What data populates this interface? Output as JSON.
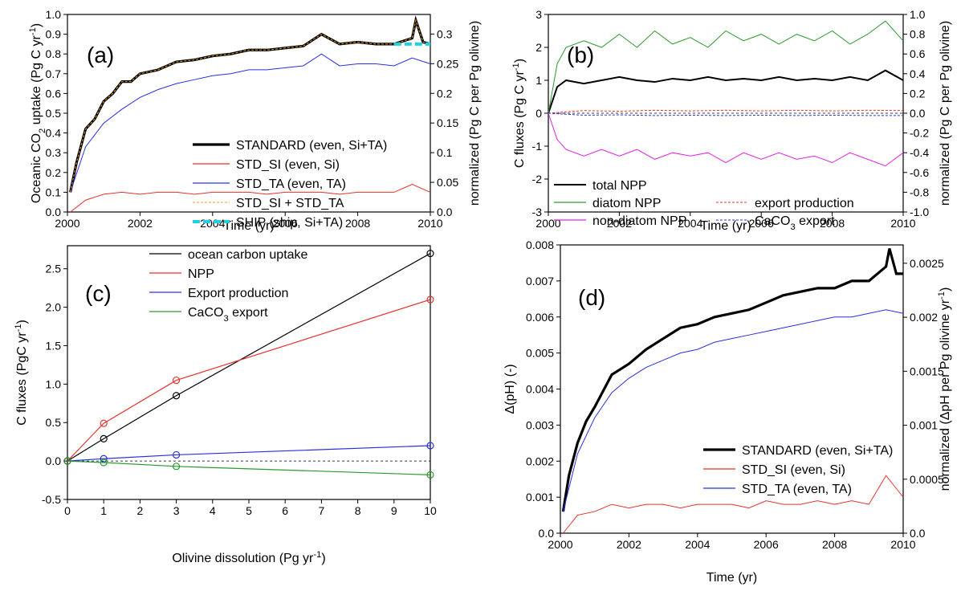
{
  "chart_data": [
    {
      "panel": "(a)",
      "type": "line",
      "xlabel": "Time (yr)",
      "ylabel": "Oceanic CO2 uptake (Pg C yr-1)",
      "ylabel_parts": [
        "Oceanic CO",
        "2",
        " uptake (Pg C yr",
        "-1",
        ")"
      ],
      "ylabel_right": "normalized (Pg C per Pg olivine)",
      "xlim": [
        2000,
        2010
      ],
      "ylim": [
        0,
        1.0
      ],
      "ylim_right": [
        0,
        0.333
      ],
      "xticks": [
        "2000",
        "2002",
        "2004",
        "2006",
        "2008",
        "2010"
      ],
      "yticks": [
        "0.0",
        "0.1",
        "0.2",
        "0.3",
        "0.4",
        "0.5",
        "0.6",
        "0.7",
        "0.8",
        "0.9",
        "1.0"
      ],
      "yticks_right": [
        "0.0",
        "0.05",
        "0.1",
        "0.15",
        "0.2",
        "0.25",
        "0.3"
      ],
      "legend_position": "lower-right",
      "series": [
        {
          "name": "STANDARD (even, Si+TA)",
          "color": "#000000",
          "style": "thick",
          "x": [
            2000.08,
            2000.25,
            2000.5,
            2000.75,
            2001.0,
            2001.25,
            2001.5,
            2001.75,
            2002.0,
            2002.5,
            2003.0,
            2003.5,
            2004.0,
            2004.5,
            2005.0,
            2005.5,
            2006.0,
            2006.5,
            2007.0,
            2007.5,
            2008.0,
            2008.5,
            2009.0,
            2009.5,
            2009.6,
            2009.8,
            2010.0
          ],
          "y": [
            0.1,
            0.25,
            0.42,
            0.47,
            0.56,
            0.6,
            0.66,
            0.66,
            0.7,
            0.72,
            0.76,
            0.77,
            0.79,
            0.8,
            0.82,
            0.82,
            0.83,
            0.84,
            0.9,
            0.85,
            0.86,
            0.85,
            0.85,
            0.88,
            0.97,
            0.86,
            0.85
          ]
        },
        {
          "name": "STD_SI (even, Si)",
          "color": "#e8302a",
          "style": "thin",
          "x": [
            2000.08,
            2000.5,
            2001.0,
            2001.5,
            2002.0,
            2002.5,
            2003.0,
            2003.5,
            2004.0,
            2004.5,
            2005.0,
            2005.5,
            2006.0,
            2006.5,
            2007.0,
            2007.5,
            2008.0,
            2008.5,
            2009.0,
            2009.5,
            2010.0
          ],
          "y": [
            0.0,
            0.06,
            0.09,
            0.1,
            0.09,
            0.1,
            0.1,
            0.09,
            0.1,
            0.1,
            0.1,
            0.09,
            0.1,
            0.1,
            0.1,
            0.09,
            0.1,
            0.1,
            0.1,
            0.14,
            0.1
          ]
        },
        {
          "name": "STD_TA (even, TA)",
          "color": "#2830e0",
          "style": "thin",
          "x": [
            2000.08,
            2000.5,
            2001.0,
            2001.5,
            2002.0,
            2002.5,
            2003.0,
            2003.5,
            2004.0,
            2004.5,
            2005.0,
            2005.5,
            2006.0,
            2006.5,
            2007.0,
            2007.5,
            2008.0,
            2008.5,
            2009.0,
            2009.5,
            2010.0
          ],
          "y": [
            0.1,
            0.33,
            0.45,
            0.52,
            0.58,
            0.62,
            0.65,
            0.67,
            0.69,
            0.7,
            0.72,
            0.72,
            0.73,
            0.74,
            0.8,
            0.74,
            0.75,
            0.75,
            0.74,
            0.78,
            0.75
          ]
        },
        {
          "name": "STD_SI + STD_TA",
          "color": "#e8a020",
          "style": "dashed",
          "x": [
            2000.08,
            2000.25,
            2000.5,
            2000.75,
            2001.0,
            2001.25,
            2001.5,
            2001.75,
            2002.0,
            2002.5,
            2003.0,
            2003.5,
            2004.0,
            2004.5,
            2005.0,
            2005.5,
            2006.0,
            2006.5,
            2007.0,
            2007.5,
            2008.0,
            2008.5,
            2009.0,
            2009.5,
            2009.6,
            2009.8,
            2010.0
          ],
          "y": [
            0.1,
            0.25,
            0.42,
            0.47,
            0.56,
            0.6,
            0.66,
            0.66,
            0.7,
            0.72,
            0.76,
            0.77,
            0.79,
            0.8,
            0.82,
            0.82,
            0.83,
            0.84,
            0.9,
            0.85,
            0.86,
            0.85,
            0.85,
            0.88,
            0.97,
            0.86,
            0.85
          ]
        },
        {
          "name": "SHIP (ship, Si+TA)",
          "color": "#20d0e0",
          "style": "thickdashed",
          "x": [
            2009.0,
            2010.0
          ],
          "y": [
            0.85,
            0.85
          ]
        }
      ]
    },
    {
      "panel": "(b)",
      "type": "line",
      "xlabel": "Time (yr)",
      "ylabel": "C fluxes (Pg C yr-1)",
      "ylabel_parts": [
        "C fluxes (Pg C yr",
        "-1",
        ")"
      ],
      "ylabel_right": "normalized (Pg C per Pg olivine)",
      "xlim": [
        2000,
        2010
      ],
      "ylim": [
        -3,
        3
      ],
      "ylim_right": [
        -1.0,
        1.0
      ],
      "xticks": [
        "2000",
        "2002",
        "2004",
        "2006",
        "2008",
        "2010"
      ],
      "yticks": [
        "-3",
        "-2",
        "-1",
        "0",
        "1",
        "2",
        "3"
      ],
      "yticks_right": [
        "-1.0",
        "-0.8",
        "-0.6",
        "-0.4",
        "-0.2",
        "0.0",
        "0.2",
        "0.4",
        "0.6",
        "0.8",
        "1.0"
      ],
      "legend_position": "lower",
      "series": [
        {
          "name": "total NPP",
          "color": "#000000",
          "style": "medium",
          "x": [
            2000.0,
            2000.25,
            2000.5,
            2001.0,
            2001.5,
            2002.0,
            2002.5,
            2003.0,
            2003.5,
            2004.0,
            2004.5,
            2005.0,
            2005.5,
            2006.0,
            2006.5,
            2007.0,
            2007.5,
            2008.0,
            2008.5,
            2009.0,
            2009.5,
            2010.0
          ],
          "y": [
            0.0,
            0.8,
            1.0,
            0.9,
            1.0,
            1.1,
            1.0,
            0.95,
            1.05,
            1.0,
            1.1,
            1.0,
            1.05,
            1.0,
            1.1,
            1.0,
            1.05,
            1.0,
            1.1,
            1.0,
            1.3,
            1.0
          ]
        },
        {
          "name": "diatom NPP",
          "color": "#2a9a2a",
          "style": "thin",
          "x": [
            2000.0,
            2000.25,
            2000.5,
            2001.0,
            2001.5,
            2002.0,
            2002.5,
            2003.0,
            2003.5,
            2004.0,
            2004.5,
            2005.0,
            2005.5,
            2006.0,
            2006.5,
            2007.0,
            2007.5,
            2008.0,
            2008.5,
            2009.0,
            2009.5,
            2010.0
          ],
          "y": [
            0.0,
            1.5,
            2.0,
            2.2,
            2.0,
            2.4,
            2.0,
            2.5,
            2.1,
            2.3,
            2.0,
            2.5,
            2.2,
            2.4,
            2.1,
            2.4,
            2.2,
            2.5,
            2.1,
            2.4,
            2.8,
            2.2
          ]
        },
        {
          "name": "non-diatom NPP",
          "color": "#e020e0",
          "style": "thin",
          "x": [
            2000.0,
            2000.25,
            2000.5,
            2001.0,
            2001.5,
            2002.0,
            2002.5,
            2003.0,
            2003.5,
            2004.0,
            2004.5,
            2005.0,
            2005.5,
            2006.0,
            2006.5,
            2007.0,
            2007.5,
            2008.0,
            2008.5,
            2009.0,
            2009.5,
            2010.0
          ],
          "y": [
            0.0,
            -0.8,
            -1.1,
            -1.3,
            -1.1,
            -1.3,
            -1.1,
            -1.4,
            -1.2,
            -1.3,
            -1.2,
            -1.5,
            -1.2,
            -1.4,
            -1.2,
            -1.4,
            -1.3,
            -1.5,
            -1.2,
            -1.4,
            -1.6,
            -1.2
          ]
        },
        {
          "name": "export production",
          "color": "#e8302a",
          "style": "dashed",
          "x": [
            2000.0,
            2001.0,
            2002.0,
            2003.0,
            2004.0,
            2005.0,
            2006.0,
            2007.0,
            2008.0,
            2009.0,
            2010.0
          ],
          "y": [
            0.0,
            0.08,
            0.06,
            0.09,
            0.07,
            0.09,
            0.07,
            0.09,
            0.07,
            0.09,
            0.08
          ]
        },
        {
          "name": "CaCO3 export",
          "name_parts": [
            "CaCO",
            "3",
            " export"
          ],
          "color": "#2830e0",
          "style": "dashed",
          "x": [
            2000.0,
            2001.0,
            2002.0,
            2003.0,
            2004.0,
            2005.0,
            2006.0,
            2007.0,
            2008.0,
            2009.0,
            2010.0
          ],
          "y": [
            0.0,
            -0.06,
            -0.05,
            -0.07,
            -0.06,
            -0.07,
            -0.06,
            -0.07,
            -0.06,
            -0.07,
            -0.07
          ]
        }
      ]
    },
    {
      "panel": "(c)",
      "type": "line",
      "xlabel": "Olivine dissolution (Pg yr-1)",
      "xlabel_parts": [
        "Olivine dissolution (Pg yr",
        "-1",
        ")"
      ],
      "ylabel": "C fluxes (PgC yr-1)",
      "ylabel_parts": [
        "C fluxes (PgC yr",
        "-1",
        ")"
      ],
      "xlim": [
        0,
        10
      ],
      "ylim": [
        -0.5,
        2.8
      ],
      "xticks": [
        "0",
        "1",
        "2",
        "3",
        "4",
        "5",
        "6",
        "7",
        "8",
        "9",
        "10"
      ],
      "yticks": [
        "-0.5",
        "0.0",
        "0.5",
        "1.0",
        "1.5",
        "2.0",
        "2.5"
      ],
      "legend_position": "top",
      "series": [
        {
          "name": "ocean carbon uptake",
          "color": "#000000",
          "x": [
            0,
            1,
            3,
            10
          ],
          "y": [
            0,
            0.29,
            0.85,
            2.7
          ]
        },
        {
          "name": "NPP",
          "color": "#e8302a",
          "x": [
            0,
            1,
            3,
            10
          ],
          "y": [
            0,
            0.49,
            1.05,
            2.1
          ]
        },
        {
          "name": "Export production",
          "color": "#2830e0",
          "x": [
            0,
            1,
            3,
            10
          ],
          "y": [
            0,
            0.03,
            0.08,
            0.2
          ]
        },
        {
          "name": "CaCO3 export",
          "name_parts": [
            "CaCO",
            "3",
            " export"
          ],
          "color": "#2a9a2a",
          "x": [
            0,
            1,
            3,
            10
          ],
          "y": [
            0,
            -0.02,
            -0.07,
            -0.18
          ]
        }
      ]
    },
    {
      "panel": "(d)",
      "type": "line",
      "xlabel": "Time (yr)",
      "ylabel": "Δ(pH) (-)",
      "ylabel_right": "normalized (ΔpH per Pg olivine yr-1)",
      "ylabel_right_parts": [
        "normalized (ΔpH per Pg olivine yr",
        "-1",
        ")"
      ],
      "xlim": [
        2000,
        2010
      ],
      "ylim": [
        0,
        0.008
      ],
      "ylim_right": [
        0,
        0.00267
      ],
      "xticks": [
        "2000",
        "2002",
        "2004",
        "2006",
        "2008",
        "2010"
      ],
      "yticks": [
        "0.0",
        "0.001",
        "0.002",
        "0.003",
        "0.004",
        "0.005",
        "0.006",
        "0.007",
        "0.008"
      ],
      "yticks_right": [
        "0.0",
        "0.0005",
        "0.001",
        "0.0015",
        "0.002",
        "0.0025"
      ],
      "legend_position": "right",
      "series": [
        {
          "name": "STANDARD (even, Si+TA)",
          "color": "#000000",
          "style": "thick",
          "x": [
            2000.08,
            2000.25,
            2000.5,
            2000.75,
            2001.0,
            2001.5,
            2002.0,
            2002.5,
            2003.0,
            2003.5,
            2004.0,
            2004.5,
            2005.0,
            2005.5,
            2006.0,
            2006.5,
            2007.0,
            2007.5,
            2008.0,
            2008.5,
            2009.0,
            2009.5,
            2009.6,
            2009.8,
            2010.0
          ],
          "y": [
            0.0006,
            0.0016,
            0.0025,
            0.0031,
            0.0035,
            0.0044,
            0.0047,
            0.0051,
            0.0054,
            0.0057,
            0.0058,
            0.006,
            0.0061,
            0.0062,
            0.0064,
            0.0066,
            0.0067,
            0.0068,
            0.0068,
            0.007,
            0.007,
            0.0074,
            0.0079,
            0.0072,
            0.0072
          ]
        },
        {
          "name": "STD_SI (even, Si)",
          "color": "#e8302a",
          "style": "thin",
          "x": [
            2000.08,
            2000.5,
            2001.0,
            2001.5,
            2002.0,
            2002.5,
            2003.0,
            2003.5,
            2004.0,
            2004.5,
            2005.0,
            2005.5,
            2006.0,
            2006.5,
            2007.0,
            2007.5,
            2008.0,
            2008.5,
            2009.0,
            2009.5,
            2010.0
          ],
          "y": [
            0.0,
            0.0005,
            0.0006,
            0.0008,
            0.0007,
            0.0008,
            0.0008,
            0.0007,
            0.0008,
            0.0008,
            0.0008,
            0.0007,
            0.0009,
            0.0008,
            0.0008,
            0.0009,
            0.0008,
            0.0009,
            0.0008,
            0.0016,
            0.001
          ]
        },
        {
          "name": "STD_TA (even, TA)",
          "color": "#2830e0",
          "style": "thin",
          "x": [
            2000.08,
            2000.5,
            2001.0,
            2001.5,
            2002.0,
            2002.5,
            2003.0,
            2003.5,
            2004.0,
            2004.5,
            2005.0,
            2005.5,
            2006.0,
            2006.5,
            2007.0,
            2007.5,
            2008.0,
            2008.5,
            2009.0,
            2009.5,
            2010.0
          ],
          "y": [
            0.0006,
            0.0022,
            0.0032,
            0.0039,
            0.0043,
            0.0046,
            0.0048,
            0.005,
            0.0051,
            0.0053,
            0.0054,
            0.0055,
            0.0056,
            0.0057,
            0.0058,
            0.0059,
            0.006,
            0.006,
            0.0061,
            0.0062,
            0.0061
          ]
        }
      ]
    }
  ]
}
